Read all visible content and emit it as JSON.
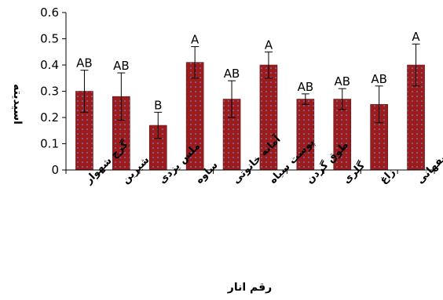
{
  "chart_data": {
    "type": "bar",
    "xlabel": "رقم انار",
    "ylabel": "اسیدیته",
    "ylim": [
      0,
      0.6
    ],
    "yticks": [
      "0",
      "0.1",
      "0.2",
      "0.3",
      "0.4",
      "0.5",
      "0.6"
    ],
    "categories": [
      "گرچ شهوار",
      "شیرین",
      "ملس یزدی",
      "ساوه",
      "آمانه خانوتی",
      "پوست سیاه",
      "طوق گردن",
      "گلری",
      "زاغ",
      "اصفهانی"
    ],
    "values": [
      0.3,
      0.28,
      0.17,
      0.41,
      0.27,
      0.4,
      0.27,
      0.27,
      0.25,
      0.4
    ],
    "errors": [
      0.08,
      0.09,
      0.05,
      0.06,
      0.07,
      0.05,
      0.02,
      0.04,
      0.07,
      0.08
    ],
    "labels": [
      "AB",
      "AB",
      "B",
      "A",
      "AB",
      "A",
      "AB",
      "AB",
      "AB",
      "A"
    ],
    "bar_color": "#9B1C1F",
    "dot_color": "#7FA0D8",
    "grid": false,
    "legend": "none"
  }
}
